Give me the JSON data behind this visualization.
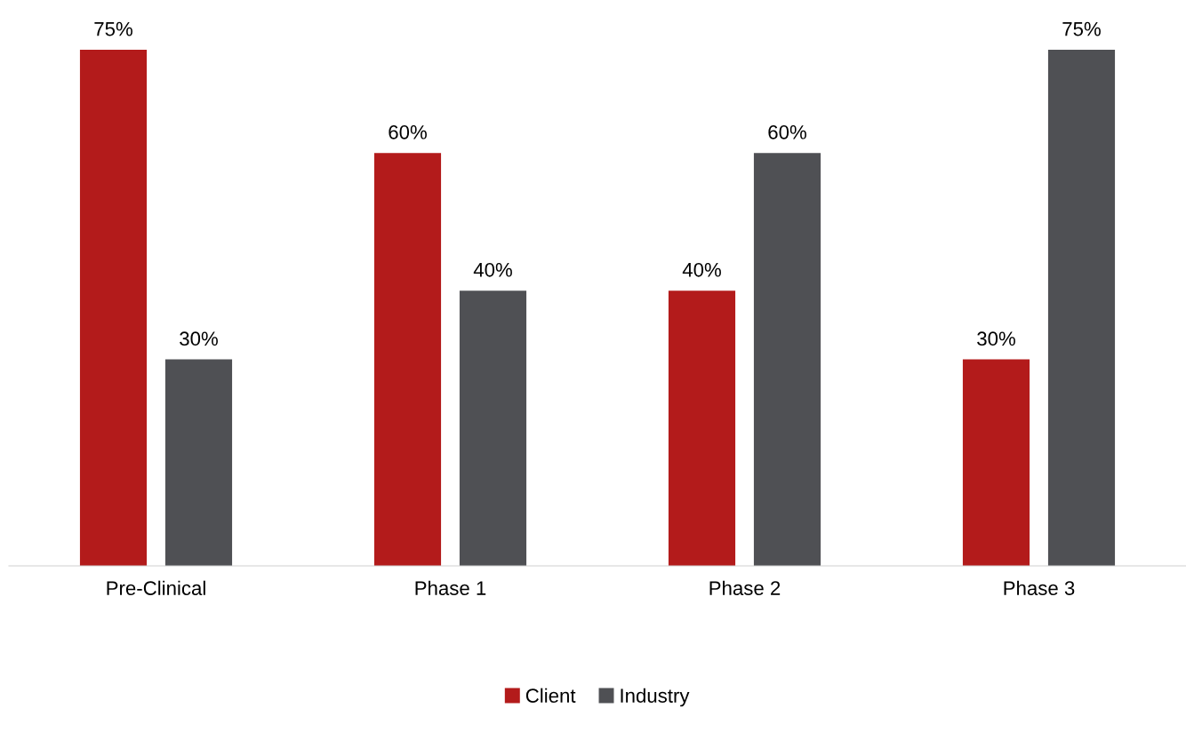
{
  "chart_data": {
    "type": "bar",
    "categories": [
      "Pre-Clinical",
      "Phase 1",
      "Phase 2",
      "Phase 3"
    ],
    "series": [
      {
        "name": "Client",
        "color": "#b31b1b",
        "values": [
          75,
          60,
          40,
          30
        ],
        "value_labels": [
          "75%",
          "60%",
          "40%",
          "30%"
        ]
      },
      {
        "name": "Industry",
        "color": "#4f5054",
        "values": [
          30,
          40,
          60,
          75
        ],
        "value_labels": [
          "30%",
          "40%",
          "60%",
          "75%"
        ]
      }
    ],
    "legend": "bottom",
    "grid": false,
    "tick_labels": "x"
  }
}
